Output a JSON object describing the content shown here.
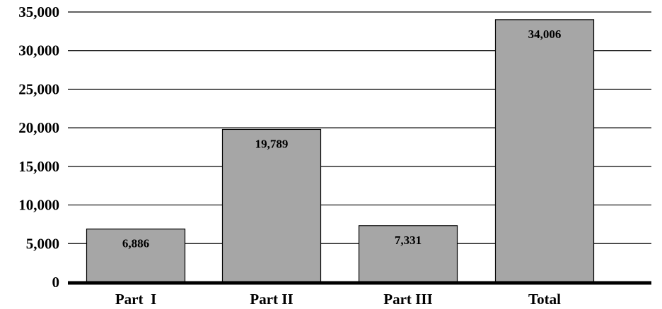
{
  "chart_data": {
    "type": "bar",
    "title": "",
    "xlabel": "",
    "ylabel": "",
    "categories": [
      "Part  I",
      "Part II",
      "Part III",
      "Total"
    ],
    "values": [
      6886,
      19789,
      7331,
      34006
    ],
    "data_labels": [
      "6,886",
      "19,789",
      "7,331",
      "34,006"
    ],
    "ylim": [
      0,
      35000
    ],
    "yticks": [
      0,
      5000,
      10000,
      15000,
      20000,
      25000,
      30000,
      35000
    ],
    "ytick_labels": [
      "0",
      "5,000",
      "10,000",
      "15,000",
      "20,000",
      "25,000",
      "30,000",
      "35,000"
    ],
    "grid": true,
    "legend": "none",
    "colors": {
      "bar_fill": "#a6a6a6",
      "bar_stroke": "#000000",
      "grid": "#000000",
      "baseline": "#000000"
    }
  }
}
